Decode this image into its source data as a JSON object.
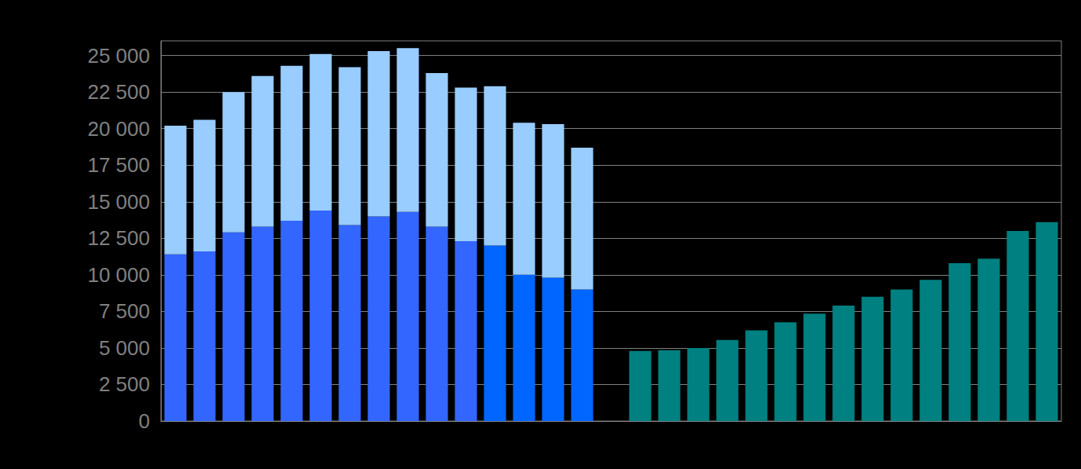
{
  "chart_data": {
    "type": "bar",
    "stacked": true,
    "grid": true,
    "tick_labels": "y",
    "categories": [
      null,
      null,
      null,
      null,
      null,
      null,
      null,
      null,
      null,
      null,
      null,
      null,
      null,
      null,
      null,
      null,
      null,
      null,
      null,
      null,
      null,
      null,
      null,
      null,
      null,
      null,
      null,
      null,
      null,
      null,
      null
    ],
    "ylim": [
      0,
      26000
    ],
    "yticks": [
      0,
      {
        "value": 2500,
        "label": "2 500"
      },
      {
        "value": 5000,
        "label": "5 000"
      },
      {
        "value": 7500,
        "label": "7 500"
      },
      {
        "value": 10000,
        "label": "10 000"
      },
      {
        "value": 12500,
        "label": "12 500"
      },
      {
        "value": 15000,
        "label": "15 000"
      },
      {
        "value": 17500,
        "label": "17 500"
      },
      {
        "value": 20000,
        "label": "20 000"
      },
      {
        "value": 22500,
        "label": "22 500"
      },
      {
        "value": 25000,
        "label": "25 000"
      }
    ],
    "series": [
      {
        "values": [
          11400,
          11600,
          12900,
          13300,
          13700,
          14400,
          13400,
          14000,
          14300,
          13300,
          12300,
          12000,
          10000,
          9800,
          9000,
          null,
          4800,
          4850,
          5000,
          5550,
          6200,
          6750,
          7350,
          7900,
          8500,
          9000,
          9650,
          10800,
          11100,
          13000,
          13600
        ],
        "colors": [
          "#3366ff",
          "#3366ff",
          "#3366ff",
          "#3366ff",
          "#3366ff",
          "#3366ff",
          "#3366ff",
          "#3366ff",
          "#3366ff",
          "#3366ff",
          "#3366ff",
          "#0066ff",
          "#0066ff",
          "#0066ff",
          "#0066ff",
          null,
          "#008080",
          "#008080",
          "#008080",
          "#008080",
          "#008080",
          "#008080",
          "#008080",
          "#008080",
          "#008080",
          "#008080",
          "#008080",
          "#008080",
          "#008080",
          "#008080",
          "#008080"
        ]
      },
      {
        "values": [
          8800,
          9000,
          9600,
          10300,
          10600,
          10700,
          10800,
          11300,
          11200,
          10500,
          10500,
          10900,
          10400,
          10500,
          9700,
          null,
          null,
          null,
          null,
          null,
          null,
          null,
          null,
          null,
          null,
          null,
          null,
          null,
          null,
          null,
          null
        ],
        "color": "#99ccff"
      }
    ]
  }
}
